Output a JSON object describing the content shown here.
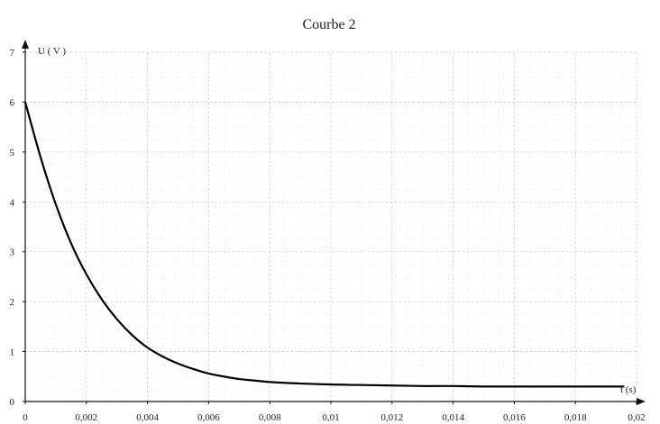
{
  "chart_data": {
    "type": "line",
    "title": "Courbe 2",
    "xlabel": "t (s)",
    "ylabel": "U ( V )",
    "xlim": [
      0,
      0.02
    ],
    "ylim": [
      0,
      7
    ],
    "grid": true,
    "x_ticks": [
      0,
      0.002,
      0.004,
      0.006,
      0.008,
      0.01,
      0.012,
      0.014,
      0.016,
      0.018,
      0.02
    ],
    "x_tick_labels": [
      "0",
      "0,002",
      "0,004",
      "0,006",
      "0,008",
      "0,01",
      "0,012",
      "0,014",
      "0,016",
      "0,018",
      "0,02"
    ],
    "y_ticks": [
      0,
      1,
      2,
      3,
      4,
      5,
      6,
      7
    ],
    "y_tick_labels": [
      "0",
      "1",
      "2",
      "3",
      "4",
      "5",
      "6",
      "7"
    ],
    "series": [
      {
        "x": [
          0,
          0.0005,
          0.001,
          0.0015,
          0.002,
          0.0025,
          0.003,
          0.0035,
          0.004,
          0.0045,
          0.005,
          0.0055,
          0.006,
          0.0065,
          0.007,
          0.0075,
          0.008,
          0.009,
          0.01,
          0.011,
          0.012,
          0.013,
          0.014,
          0.015,
          0.016,
          0.017,
          0.018,
          0.0196
        ],
        "y": [
          6.0,
          4.9,
          3.95,
          3.17,
          2.55,
          2.05,
          1.65,
          1.33,
          1.08,
          0.9,
          0.76,
          0.65,
          0.56,
          0.5,
          0.45,
          0.42,
          0.39,
          0.36,
          0.34,
          0.33,
          0.32,
          0.31,
          0.31,
          0.3,
          0.3,
          0.3,
          0.3,
          0.3
        ],
        "color": "#000000"
      }
    ]
  }
}
